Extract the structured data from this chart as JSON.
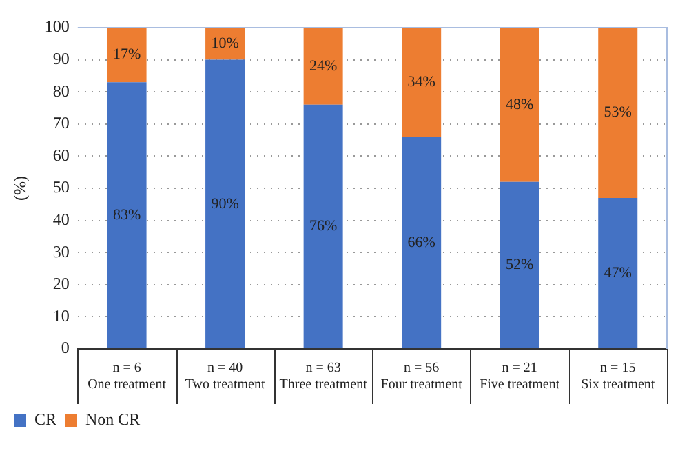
{
  "chart_data": {
    "type": "bar",
    "stacked": true,
    "ylabel": "(%)",
    "categories": [
      "n = 6\nOne treatment",
      "n = 40\nTwo treatment",
      "n = 63\nThree treatment",
      "n = 56\nFour treatment",
      "n = 21\nFive treatment",
      "n = 15\nSix treatment"
    ],
    "series": [
      {
        "name": "CR",
        "color": "#4472c4",
        "values": [
          83,
          90,
          76,
          66,
          52,
          47
        ],
        "value_labels": [
          "83%",
          "90%",
          "76%",
          "66%",
          "52%",
          "47%"
        ]
      },
      {
        "name": "Non CR",
        "color": "#ed7d31",
        "values": [
          17,
          10,
          24,
          34,
          48,
          53
        ],
        "value_labels": [
          "17%",
          "10%",
          "24%",
          "34%",
          "48%",
          "53%"
        ]
      }
    ],
    "ylim": [
      0,
      100
    ],
    "yticks": [
      0,
      10,
      20,
      30,
      40,
      50,
      60,
      70,
      80,
      90,
      100
    ],
    "grid": "y",
    "legend": "bottom left"
  }
}
